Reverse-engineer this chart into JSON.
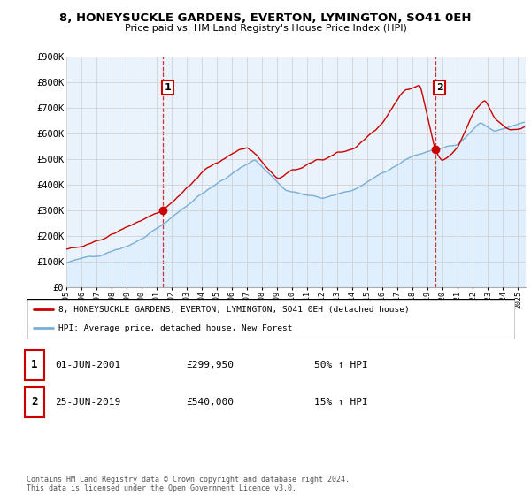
{
  "title": "8, HONEYSUCKLE GARDENS, EVERTON, LYMINGTON, SO41 0EH",
  "subtitle": "Price paid vs. HM Land Registry's House Price Index (HPI)",
  "ylim": [
    0,
    900000
  ],
  "yticks": [
    0,
    100000,
    200000,
    300000,
    400000,
    500000,
    600000,
    700000,
    800000,
    900000
  ],
  "ytick_labels": [
    "£0",
    "£100K",
    "£200K",
    "£300K",
    "£400K",
    "£500K",
    "£600K",
    "£700K",
    "£800K",
    "£900K"
  ],
  "house_color": "#cc0000",
  "hpi_color": "#7aafd4",
  "hpi_fill_color": "#ddeeff",
  "purchase1_date": 2001.42,
  "purchase1_price": 299950,
  "purchase2_date": 2019.48,
  "purchase2_price": 540000,
  "legend_house": "8, HONEYSUCKLE GARDENS, EVERTON, LYMINGTON, SO41 0EH (detached house)",
  "legend_hpi": "HPI: Average price, detached house, New Forest",
  "annotation1_date": "01-JUN-2001",
  "annotation1_price": "£299,950",
  "annotation1_hpi": "50% ↑ HPI",
  "annotation2_date": "25-JUN-2019",
  "annotation2_price": "£540,000",
  "annotation2_hpi": "15% ↑ HPI",
  "footer": "Contains HM Land Registry data © Crown copyright and database right 2024.\nThis data is licensed under the Open Government Licence v3.0.",
  "chart_bg": "#eaf3fb"
}
